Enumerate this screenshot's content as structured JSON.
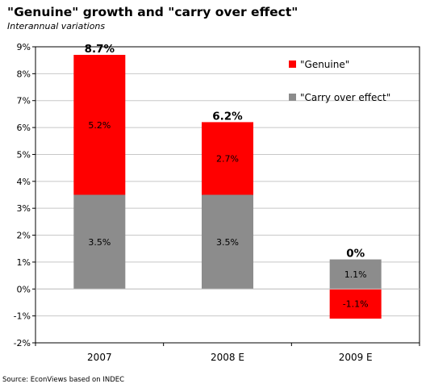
{
  "title": "\"Genuine\" growth and \"carry over effect\"",
  "subtitle": "Interannual variations",
  "source": "Source: EconViews based on INDEC",
  "chart_data": {
    "type": "bar",
    "stacked": true,
    "categories": [
      "2007",
      "2008 E",
      "2009 E"
    ],
    "series": [
      {
        "name": "\"Carry over effect\"",
        "values": [
          3.5,
          3.5,
          1.1
        ],
        "labels": [
          "3.5%",
          "3.5%",
          "1.1%"
        ],
        "color": "#8c8c8c"
      },
      {
        "name": "\"Genuine\"",
        "values": [
          5.2,
          2.7,
          -1.1
        ],
        "labels": [
          "5.2%",
          "2.7%",
          "-1.1%"
        ],
        "color": "#ff0000"
      }
    ],
    "totals": [
      "8.7%",
      "6.2%",
      "0%"
    ],
    "ylim": [
      -2,
      9
    ],
    "yticks": [
      "-2%",
      "-1%",
      "0%",
      "1%",
      "2%",
      "3%",
      "4%",
      "5%",
      "6%",
      "7%",
      "8%",
      "9%"
    ],
    "grid": true,
    "legend": "top-right"
  }
}
